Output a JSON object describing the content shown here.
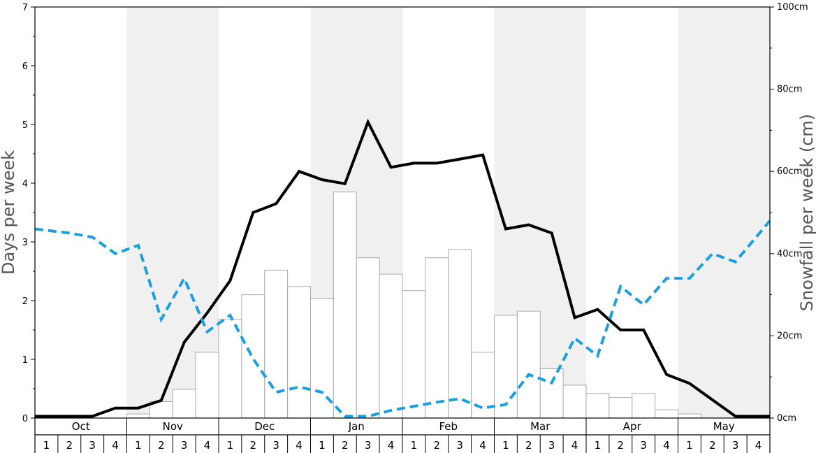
{
  "chart_data": {
    "type": "bar",
    "months": [
      "Oct",
      "Nov",
      "Dec",
      "Jan",
      "Feb",
      "Mar",
      "Apr",
      "May"
    ],
    "shaded_months": [
      "Nov",
      "Jan",
      "Mar",
      "May"
    ],
    "week_labels": [
      "1",
      "2",
      "3",
      "4"
    ],
    "y_left": {
      "label": "Days per week",
      "range": [
        0,
        7
      ],
      "ticks": [
        "0",
        "1",
        "2",
        "3",
        "4",
        "5",
        "6",
        "7"
      ]
    },
    "y_right": {
      "label": "Snowfall per week (cm)",
      "range": [
        0,
        100
      ],
      "ticks": [
        "0cm",
        "20cm",
        "40cm",
        "60cm",
        "80cm",
        "100cm"
      ]
    },
    "series": [
      {
        "kind": "bar",
        "axis": "right",
        "values": [
          0,
          0,
          0,
          0,
          1,
          4,
          7,
          16,
          24,
          30,
          36,
          32,
          29,
          55,
          39,
          35,
          31,
          39,
          41,
          16,
          25,
          26,
          12,
          8,
          6,
          5,
          6,
          2,
          1,
          0,
          0,
          0
        ],
        "color": "#ffffff",
        "stroke": "#aaaaaa"
      },
      {
        "kind": "line",
        "axis": "left",
        "values": [
          0.03,
          0.03,
          0.03,
          0.17,
          0.17,
          0.3,
          1.29,
          1.79,
          2.34,
          3.5,
          3.65,
          4.2,
          4.06,
          3.99,
          5.04,
          4.27,
          4.34,
          4.34,
          4.41,
          4.48,
          3.22,
          3.29,
          3.15,
          1.71,
          1.85,
          1.5,
          1.5,
          0.74,
          0.59,
          0.31,
          0.03,
          0.03
        ],
        "color": "#000000",
        "style": "solid"
      },
      {
        "kind": "line",
        "axis": "left",
        "values": [
          3.22,
          3.15,
          3.08,
          2.8,
          2.94,
          1.68,
          2.38,
          1.47,
          1.75,
          1.01,
          0.44,
          0.53,
          0.44,
          0.03,
          0.03,
          0.13,
          0.2,
          0.27,
          0.33,
          0.17,
          0.23,
          0.74,
          0.6,
          1.36,
          1.06,
          2.24,
          1.93,
          2.38,
          2.38,
          2.8,
          2.66,
          3.36
        ],
        "color": "#1a9fe0",
        "style": "dashed"
      }
    ]
  }
}
